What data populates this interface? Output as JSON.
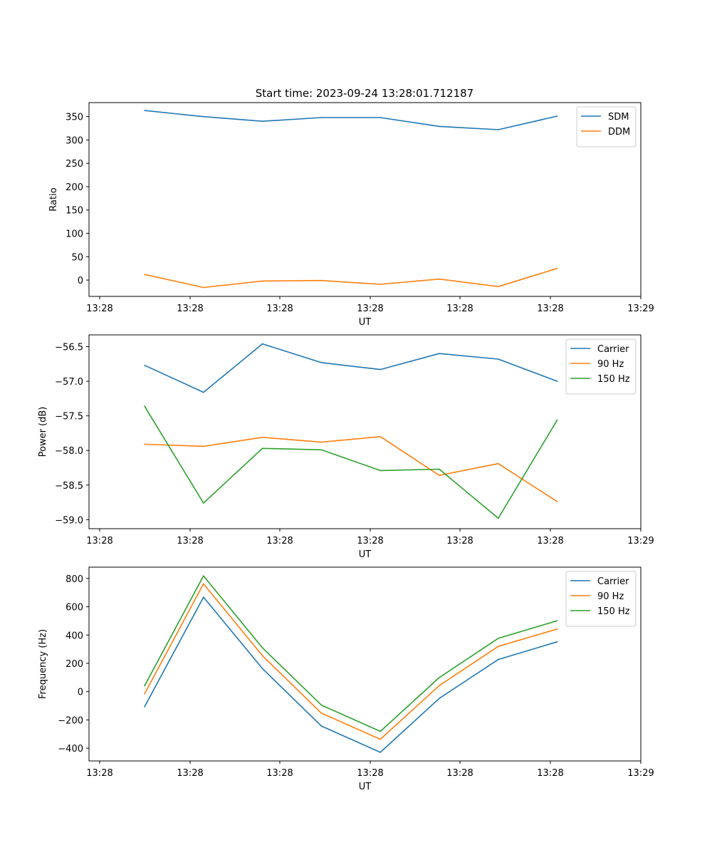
{
  "title": "Start time: 2023-09-24 13:28:01.712187",
  "chart_data": [
    {
      "type": "line",
      "xlabel": "UT",
      "ylabel": "Ratio",
      "x_ticks": [
        "13:28",
        "13:28",
        "13:28",
        "13:28",
        "13:28",
        "13:28",
        "13:29"
      ],
      "ylim": [
        -35,
        380
      ],
      "y_ticks": [
        0,
        50,
        100,
        150,
        200,
        250,
        300,
        350
      ],
      "y_tick_labels": [
        "0",
        "50",
        "100",
        "150",
        "200",
        "250",
        "300",
        "350"
      ],
      "legend_position": "top-right",
      "series": [
        {
          "name": "SDM",
          "color": "#1f77b4",
          "values": [
            363,
            350,
            340,
            348,
            348,
            329,
            322,
            351
          ]
        },
        {
          "name": "DDM",
          "color": "#ff7f0e",
          "values": [
            12,
            -16,
            -2,
            -1,
            -9,
            2,
            -14,
            25
          ]
        }
      ]
    },
    {
      "type": "line",
      "xlabel": "UT",
      "ylabel": "Power (dB)",
      "x_ticks": [
        "13:28",
        "13:28",
        "13:28",
        "13:28",
        "13:28",
        "13:28",
        "13:29"
      ],
      "ylim": [
        -59.13,
        -56.33
      ],
      "y_ticks": [
        -59.0,
        -58.5,
        -58.0,
        -57.5,
        -57.0,
        -56.5
      ],
      "y_tick_labels": [
        "−59.0",
        "−58.5",
        "−58.0",
        "−57.5",
        "−57.0",
        "−56.5"
      ],
      "legend_position": "top-right",
      "series": [
        {
          "name": "Carrier",
          "color": "#1f77b4",
          "values": [
            -56.77,
            -57.16,
            -56.46,
            -56.73,
            -56.83,
            -56.6,
            -56.68,
            -57.0
          ]
        },
        {
          "name": "90 Hz",
          "color": "#ff7f0e",
          "values": [
            -57.91,
            -57.94,
            -57.81,
            -57.88,
            -57.8,
            -58.36,
            -58.19,
            -58.74
          ]
        },
        {
          "name": "150 Hz",
          "color": "#2ca02c",
          "values": [
            -57.36,
            -58.76,
            -57.97,
            -57.99,
            -58.29,
            -58.27,
            -58.98,
            -57.56
          ]
        }
      ]
    },
    {
      "type": "line",
      "xlabel": "UT",
      "ylabel": "Frequency (Hz)",
      "x_ticks": [
        "13:28",
        "13:28",
        "13:28",
        "13:28",
        "13:28",
        "13:28",
        "13:29"
      ],
      "ylim": [
        -490,
        880
      ],
      "y_ticks": [
        -400,
        -200,
        0,
        200,
        400,
        600,
        800
      ],
      "y_tick_labels": [
        "−400",
        "−200",
        "0",
        "200",
        "400",
        "600",
        "800"
      ],
      "legend_position": "top-right",
      "series": [
        {
          "name": "Carrier",
          "color": "#1f77b4",
          "values": [
            -107,
            668,
            163,
            -243,
            -429,
            -48,
            227,
            352
          ]
        },
        {
          "name": "90 Hz",
          "color": "#ff7f0e",
          "values": [
            -16,
            762,
            254,
            -152,
            -337,
            43,
            320,
            443
          ]
        },
        {
          "name": "150 Hz",
          "color": "#2ca02c",
          "values": [
            41,
            818,
            310,
            -95,
            -281,
            100,
            377,
            501
          ]
        }
      ]
    }
  ]
}
